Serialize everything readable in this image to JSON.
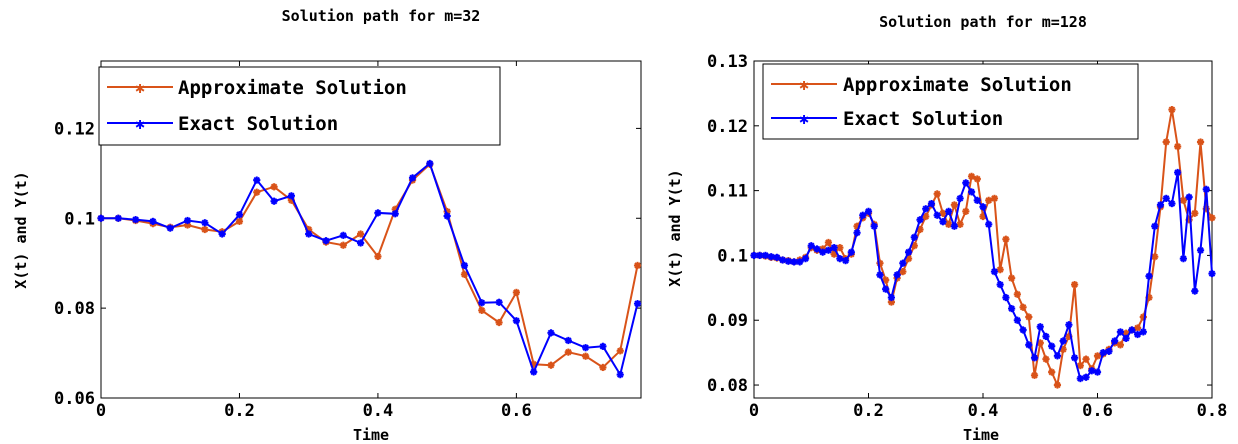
{
  "chart_data": [
    {
      "type": "line",
      "title": "Solution path for m=32",
      "xlabel": "Time",
      "ylabel": "X(t) and Y(t)",
      "xlim": [
        0,
        0.78
      ],
      "ylim": [
        0.06,
        0.135
      ],
      "xticks": [
        "0",
        "0.2",
        "0.4",
        "0.6"
      ],
      "yticks": [
        "0.06",
        "0.08",
        "0.1",
        "0.12"
      ],
      "legend_position": "top-left",
      "grid": false,
      "series": [
        {
          "name": "Approximate Solution",
          "color": "#d95319",
          "x": [
            0,
            0.025,
            0.05,
            0.075,
            0.1,
            0.125,
            0.15,
            0.175,
            0.2,
            0.225,
            0.25,
            0.275,
            0.3,
            0.325,
            0.35,
            0.375,
            0.4,
            0.425,
            0.45,
            0.475,
            0.5,
            0.525,
            0.55,
            0.575,
            0.6,
            0.625,
            0.65,
            0.675,
            0.7,
            0.725,
            0.75,
            0.775
          ],
          "values": [
            0.1,
            0.1,
            0.0995,
            0.0988,
            0.098,
            0.0985,
            0.0975,
            0.097,
            0.0993,
            0.1058,
            0.107,
            0.104,
            0.0975,
            0.0947,
            0.094,
            0.0965,
            0.0915,
            0.102,
            0.1085,
            0.112,
            0.1015,
            0.0875,
            0.0795,
            0.0768,
            0.0835,
            0.0675,
            0.0673,
            0.0702,
            0.0693,
            0.0668,
            0.0705,
            0.0895
          ]
        },
        {
          "name": "Exact Solution",
          "color": "#0000ff",
          "x": [
            0,
            0.025,
            0.05,
            0.075,
            0.1,
            0.125,
            0.15,
            0.175,
            0.2,
            0.225,
            0.25,
            0.275,
            0.3,
            0.325,
            0.35,
            0.375,
            0.4,
            0.425,
            0.45,
            0.475,
            0.5,
            0.525,
            0.55,
            0.575,
            0.6,
            0.625,
            0.65,
            0.675,
            0.7,
            0.725,
            0.75,
            0.775
          ],
          "values": [
            0.1,
            0.1,
            0.0997,
            0.0993,
            0.0978,
            0.0995,
            0.099,
            0.0965,
            0.1008,
            0.1085,
            0.1038,
            0.105,
            0.0965,
            0.095,
            0.0962,
            0.0945,
            0.1012,
            0.101,
            0.109,
            0.1122,
            0.1005,
            0.0895,
            0.0812,
            0.0813,
            0.0772,
            0.0658,
            0.0745,
            0.0728,
            0.0712,
            0.0715,
            0.0652,
            0.081
          ]
        }
      ]
    },
    {
      "type": "line",
      "title": "Solution path for m=128",
      "xlabel": "Time",
      "ylabel": "X(t) and Y(t)",
      "xlim": [
        0,
        0.8
      ],
      "ylim": [
        0.078,
        0.13
      ],
      "xticks": [
        "0",
        "0.2",
        "0.4",
        "0.6",
        "0.8"
      ],
      "yticks": [
        "0.08",
        "0.09",
        "0.1",
        "0.11",
        "0.12",
        "0.13"
      ],
      "legend_position": "top-left",
      "grid": false,
      "series": [
        {
          "name": "Approximate Solution",
          "color": "#d95319",
          "x": [
            0,
            0.01,
            0.02,
            0.03,
            0.04,
            0.05,
            0.06,
            0.07,
            0.08,
            0.09,
            0.1,
            0.11,
            0.12,
            0.13,
            0.14,
            0.15,
            0.16,
            0.17,
            0.18,
            0.19,
            0.2,
            0.21,
            0.22,
            0.23,
            0.24,
            0.25,
            0.26,
            0.27,
            0.28,
            0.29,
            0.3,
            0.31,
            0.32,
            0.33,
            0.34,
            0.35,
            0.36,
            0.37,
            0.38,
            0.39,
            0.4,
            0.41,
            0.42,
            0.43,
            0.44,
            0.45,
            0.46,
            0.47,
            0.48,
            0.49,
            0.5,
            0.51,
            0.52,
            0.53,
            0.54,
            0.55,
            0.56,
            0.57,
            0.58,
            0.59,
            0.6,
            0.61,
            0.62,
            0.63,
            0.64,
            0.65,
            0.66,
            0.67,
            0.68,
            0.69,
            0.7,
            0.71,
            0.72,
            0.73,
            0.74,
            0.75,
            0.76,
            0.77,
            0.78,
            0.79,
            0.8
          ],
          "values": [
            0.1,
            0.1,
            0.0999,
            0.0997,
            0.0996,
            0.0993,
            0.0992,
            0.099,
            0.0993,
            0.0997,
            0.1012,
            0.1008,
            0.101,
            0.102,
            0.1002,
            0.1012,
            0.0995,
            0.1002,
            0.1045,
            0.1058,
            0.1065,
            0.1048,
            0.0988,
            0.0962,
            0.0928,
            0.0965,
            0.0975,
            0.0995,
            0.1015,
            0.104,
            0.106,
            0.1078,
            0.1095,
            0.1065,
            0.1048,
            0.1078,
            0.1048,
            0.1068,
            0.1122,
            0.1118,
            0.106,
            0.1085,
            0.1088,
            0.0978,
            0.1025,
            0.0965,
            0.094,
            0.092,
            0.0905,
            0.0815,
            0.0865,
            0.084,
            0.082,
            0.08,
            0.0855,
            0.0875,
            0.0955,
            0.083,
            0.084,
            0.0825,
            0.0845,
            0.0848,
            0.0855,
            0.0865,
            0.0862,
            0.088,
            0.0885,
            0.0888,
            0.0905,
            0.0935,
            0.0998,
            0.1075,
            0.1175,
            0.1225,
            0.1168,
            0.1085,
            0.1055,
            0.1065,
            0.1175,
            0.1072,
            0.1058
          ]
        },
        {
          "name": "Exact Solution",
          "color": "#0000ff",
          "x": [
            0,
            0.01,
            0.02,
            0.03,
            0.04,
            0.05,
            0.06,
            0.07,
            0.08,
            0.09,
            0.1,
            0.11,
            0.12,
            0.13,
            0.14,
            0.15,
            0.16,
            0.17,
            0.18,
            0.19,
            0.2,
            0.21,
            0.22,
            0.23,
            0.24,
            0.25,
            0.26,
            0.27,
            0.28,
            0.29,
            0.3,
            0.31,
            0.32,
            0.33,
            0.34,
            0.35,
            0.36,
            0.37,
            0.38,
            0.39,
            0.4,
            0.41,
            0.42,
            0.43,
            0.44,
            0.45,
            0.46,
            0.47,
            0.48,
            0.49,
            0.5,
            0.51,
            0.52,
            0.53,
            0.54,
            0.55,
            0.56,
            0.57,
            0.58,
            0.59,
            0.6,
            0.61,
            0.62,
            0.63,
            0.64,
            0.65,
            0.66,
            0.67,
            0.68,
            0.69,
            0.7,
            0.71,
            0.72,
            0.73,
            0.74,
            0.75,
            0.76,
            0.77,
            0.78,
            0.79,
            0.8
          ],
          "values": [
            0.1,
            0.1,
            0.1,
            0.0998,
            0.0997,
            0.0993,
            0.0991,
            0.099,
            0.099,
            0.0995,
            0.1015,
            0.101,
            0.1005,
            0.1008,
            0.1012,
            0.0995,
            0.0992,
            0.1005,
            0.1035,
            0.1062,
            0.1068,
            0.1045,
            0.097,
            0.0948,
            0.0935,
            0.097,
            0.0988,
            0.1005,
            0.1028,
            0.1055,
            0.1072,
            0.108,
            0.1062,
            0.1052,
            0.1068,
            0.1045,
            0.1088,
            0.1112,
            0.1098,
            0.1085,
            0.1075,
            0.1048,
            0.0975,
            0.0955,
            0.0935,
            0.0918,
            0.09,
            0.0885,
            0.0862,
            0.0842,
            0.089,
            0.0875,
            0.086,
            0.0845,
            0.0868,
            0.0893,
            0.0842,
            0.081,
            0.0812,
            0.0822,
            0.082,
            0.085,
            0.0852,
            0.0868,
            0.0882,
            0.0872,
            0.0885,
            0.0878,
            0.0882,
            0.0968,
            0.1045,
            0.1078,
            0.1088,
            0.108,
            0.1128,
            0.0995,
            0.109,
            0.0945,
            0.1008,
            0.1102,
            0.0972
          ]
        }
      ]
    }
  ]
}
